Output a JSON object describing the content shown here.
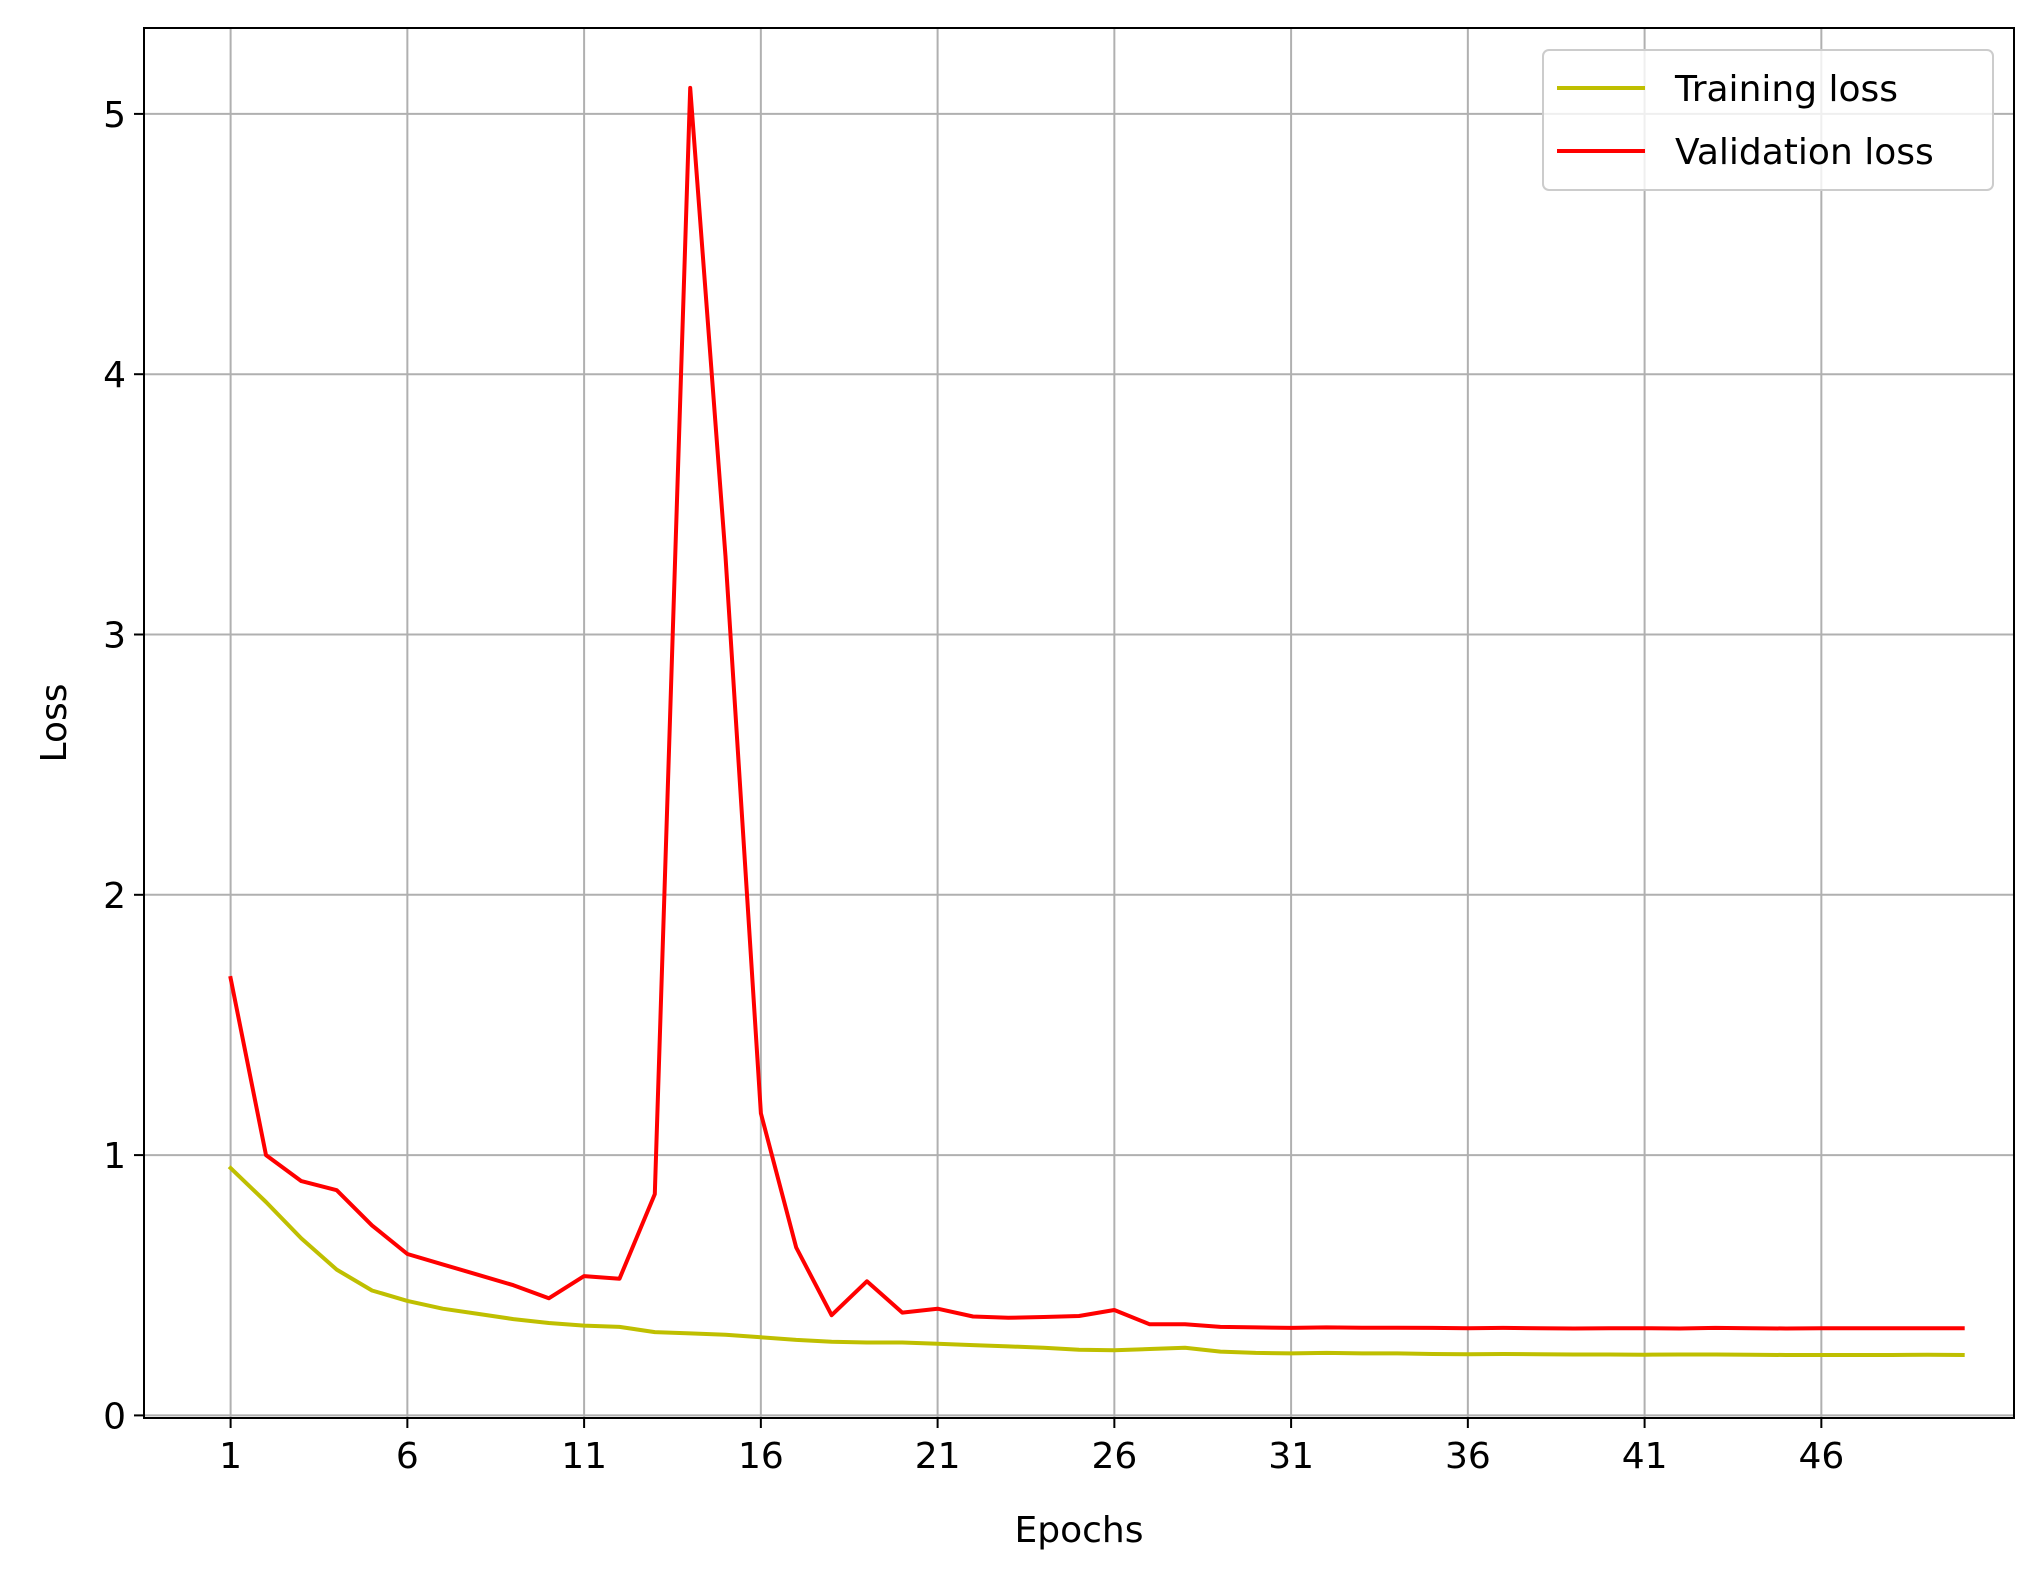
{
  "chart_data": {
    "type": "line",
    "title": "",
    "xlabel": "Epochs",
    "ylabel": "Loss",
    "xlim": [
      -1.45,
      51.45
    ],
    "ylim": [
      -0.01,
      5.33
    ],
    "xticks": [
      1,
      6,
      11,
      16,
      21,
      26,
      31,
      36,
      41,
      46
    ],
    "yticks": [
      0,
      1,
      2,
      3,
      4,
      5
    ],
    "grid": true,
    "legend_position": "top-right",
    "x": [
      1,
      2,
      3,
      4,
      5,
      6,
      7,
      8,
      9,
      10,
      11,
      12,
      13,
      14,
      15,
      16,
      17,
      18,
      19,
      20,
      21,
      22,
      23,
      24,
      25,
      26,
      27,
      28,
      29,
      30,
      31,
      32,
      33,
      34,
      35,
      36,
      37,
      38,
      39,
      40,
      41,
      42,
      43,
      44,
      45,
      46,
      47,
      48,
      49,
      50
    ],
    "series": [
      {
        "name": "Training loss",
        "color": "#bfbf00",
        "values": [
          0.95,
          0.82,
          0.68,
          0.56,
          0.48,
          0.44,
          0.41,
          0.39,
          0.37,
          0.355,
          0.345,
          0.34,
          0.32,
          0.315,
          0.31,
          0.3,
          0.29,
          0.283,
          0.28,
          0.28,
          0.275,
          0.27,
          0.265,
          0.26,
          0.252,
          0.25,
          0.255,
          0.26,
          0.245,
          0.24,
          0.238,
          0.24,
          0.238,
          0.238,
          0.236,
          0.235,
          0.236,
          0.235,
          0.234,
          0.234,
          0.233,
          0.234,
          0.234,
          0.233,
          0.232,
          0.232,
          0.232,
          0.232,
          0.233,
          0.232
        ]
      },
      {
        "name": "Validation loss",
        "color": "#ff0000",
        "values": [
          1.68,
          1.0,
          0.9,
          0.865,
          0.73,
          0.62,
          0.58,
          0.54,
          0.5,
          0.45,
          0.535,
          0.525,
          0.85,
          5.1,
          3.3,
          1.16,
          0.645,
          0.385,
          0.515,
          0.395,
          0.41,
          0.38,
          0.375,
          0.378,
          0.382,
          0.405,
          0.35,
          0.35,
          0.34,
          0.338,
          0.336,
          0.338,
          0.337,
          0.337,
          0.336,
          0.335,
          0.336,
          0.335,
          0.334,
          0.335,
          0.335,
          0.334,
          0.336,
          0.335,
          0.334,
          0.335,
          0.335,
          0.335,
          0.335,
          0.335
        ]
      }
    ]
  }
}
